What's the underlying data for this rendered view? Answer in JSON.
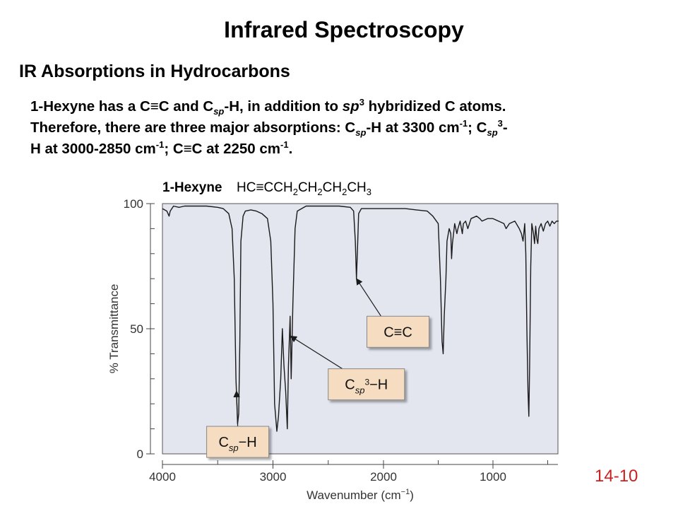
{
  "slide": {
    "title": "Infrared Spectroscopy",
    "heading": "IR Absorptions in Hydrocarbons",
    "paragraph": {
      "l1a": "1-Hexyne has a C",
      "triple": "≡",
      "l1b": "C and C",
      "sp": "sp",
      "l1c": "-H, in addition to ",
      "sp_word": "sp",
      "sup3": "3",
      "l1d": " hybridized C atoms.",
      "l2a": "Therefore, there are three major absorptions: C",
      "l2b": "-H at 3300 cm",
      "neg1": "-1",
      "l2c": "; C",
      "l2d": "-",
      "l3a": "H at 3000-2850 cm",
      "l3b": "; C",
      "l3c": "C at 2250 cm",
      "l3d": "."
    },
    "slide_number": "14-10"
  },
  "chart_data": {
    "type": "line",
    "title_bold": "1-Hexyne",
    "formula": {
      "p1": "HC≡CCH",
      "s1": "2",
      "p2": "CH",
      "s2": "2",
      "p3": "CH",
      "s3": "2",
      "p4": "CH",
      "s4": "3"
    },
    "xlabel_main": "Wavenumber (cm",
    "xlabel_sup": "−1",
    "xlabel_end": ")",
    "ylabel": "% Transmittance",
    "xlim": [
      4000,
      400
    ],
    "ylim": [
      0,
      100
    ],
    "x_ticks": [
      "4000",
      "3000",
      "2000",
      "1000"
    ],
    "x_tick_values": [
      4000,
      3000,
      2000,
      1000
    ],
    "y_ticks": [
      "0",
      "50",
      "100"
    ],
    "y_tick_values": [
      0,
      50,
      100
    ],
    "grid": false,
    "colors": {
      "plot_background": "#e3e5ef",
      "line": "#1a1a1a",
      "label_box": "#f6dcc0",
      "label_border": "#888888",
      "slide_number": "#cc1f1f"
    },
    "series": [
      {
        "points": [
          [
            4000,
            98
          ],
          [
            3960,
            97
          ],
          [
            3940,
            95
          ],
          [
            3930,
            97
          ],
          [
            3900,
            99
          ],
          [
            3850,
            98.5
          ],
          [
            3800,
            99
          ],
          [
            3700,
            99
          ],
          [
            3600,
            99
          ],
          [
            3500,
            98.5
          ],
          [
            3450,
            98
          ],
          [
            3400,
            96
          ],
          [
            3370,
            90
          ],
          [
            3350,
            70
          ],
          [
            3335,
            30
          ],
          [
            3320,
            12
          ],
          [
            3310,
            16
          ],
          [
            3300,
            45
          ],
          [
            3290,
            85
          ],
          [
            3270,
            95
          ],
          [
            3250,
            97
          ],
          [
            3200,
            97.5
          ],
          [
            3150,
            97
          ],
          [
            3100,
            96
          ],
          [
            3050,
            94
          ],
          [
            3020,
            85
          ],
          [
            3000,
            60
          ],
          [
            2985,
            20
          ],
          [
            2965,
            9
          ],
          [
            2950,
            15
          ],
          [
            2930,
            30
          ],
          [
            2915,
            50
          ],
          [
            2900,
            35
          ],
          [
            2885,
            25
          ],
          [
            2870,
            10
          ],
          [
            2860,
            35
          ],
          [
            2845,
            55
          ],
          [
            2835,
            30
          ],
          [
            2820,
            60
          ],
          [
            2800,
            90
          ],
          [
            2780,
            97
          ],
          [
            2700,
            99
          ],
          [
            2600,
            99
          ],
          [
            2500,
            99
          ],
          [
            2400,
            99
          ],
          [
            2300,
            98.5
          ],
          [
            2270,
            97
          ],
          [
            2255,
            85
          ],
          [
            2245,
            70
          ],
          [
            2235,
            82
          ],
          [
            2225,
            96
          ],
          [
            2200,
            98
          ],
          [
            2100,
            98
          ],
          [
            2000,
            98
          ],
          [
            1900,
            98
          ],
          [
            1800,
            98
          ],
          [
            1700,
            97.5
          ],
          [
            1600,
            97
          ],
          [
            1550,
            95
          ],
          [
            1500,
            92
          ],
          [
            1480,
            70
          ],
          [
            1465,
            45
          ],
          [
            1455,
            40
          ],
          [
            1445,
            55
          ],
          [
            1430,
            70
          ],
          [
            1420,
            85
          ],
          [
            1400,
            90
          ],
          [
            1385,
            88
          ],
          [
            1378,
            78
          ],
          [
            1370,
            84
          ],
          [
            1350,
            92
          ],
          [
            1330,
            88
          ],
          [
            1320,
            90
          ],
          [
            1300,
            93
          ],
          [
            1280,
            88
          ],
          [
            1270,
            92
          ],
          [
            1250,
            93
          ],
          [
            1230,
            90
          ],
          [
            1200,
            94
          ],
          [
            1150,
            95
          ],
          [
            1120,
            94
          ],
          [
            1100,
            93
          ],
          [
            1050,
            94
          ],
          [
            1000,
            94
          ],
          [
            950,
            93
          ],
          [
            900,
            92
          ],
          [
            880,
            90
          ],
          [
            850,
            92
          ],
          [
            800,
            93
          ],
          [
            760,
            90
          ],
          [
            740,
            88
          ],
          [
            725,
            85
          ],
          [
            710,
            92
          ],
          [
            700,
            80
          ],
          [
            690,
            50
          ],
          [
            680,
            25
          ],
          [
            672,
            15
          ],
          [
            665,
            35
          ],
          [
            655,
            75
          ],
          [
            645,
            92
          ],
          [
            630,
            88
          ],
          [
            620,
            84
          ],
          [
            610,
            91
          ],
          [
            600,
            86
          ],
          [
            590,
            84
          ],
          [
            580,
            90
          ],
          [
            560,
            92
          ],
          [
            540,
            89
          ],
          [
            520,
            92
          ],
          [
            500,
            93
          ],
          [
            480,
            91
          ],
          [
            460,
            93
          ],
          [
            440,
            92
          ],
          [
            420,
            93
          ],
          [
            400,
            93
          ]
        ]
      }
    ],
    "annotations": [
      {
        "main": "C≡C",
        "sub": "",
        "sup": "",
        "tail": "",
        "x": 2150,
        "y": 55,
        "target_x": 2245,
        "target_y": 70
      },
      {
        "main": "C",
        "sub": "sp",
        "sup": "3",
        "tail": "−H",
        "x": 2500,
        "y": 34,
        "target_x": 2840,
        "target_y": 47
      },
      {
        "main": "C",
        "sub": "sp",
        "sup": "",
        "tail": "−H",
        "x": 3600,
        "y": 11,
        "target_x": 3330,
        "target_y": 25
      }
    ]
  }
}
